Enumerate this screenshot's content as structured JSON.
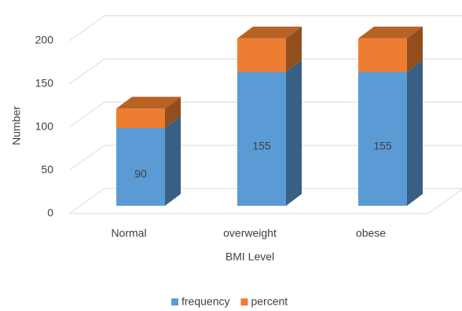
{
  "chart_data": {
    "type": "bar3d_stacked",
    "x_label": "BMI Level",
    "y_label": "Number",
    "categories": [
      "Normal",
      "overweight",
      "obese"
    ],
    "series": [
      {
        "name": "frequency",
        "color": "#5b9bd5",
        "values": [
          90,
          155,
          155
        ]
      },
      {
        "name": "percent",
        "color": "#ed7d31",
        "values": [
          22.5,
          38.75,
          38.75
        ]
      }
    ],
    "ylim": [
      0,
      200
    ],
    "yticks": [
      0,
      50,
      100,
      150,
      200
    ],
    "grid": true,
    "legend": "bottom"
  }
}
